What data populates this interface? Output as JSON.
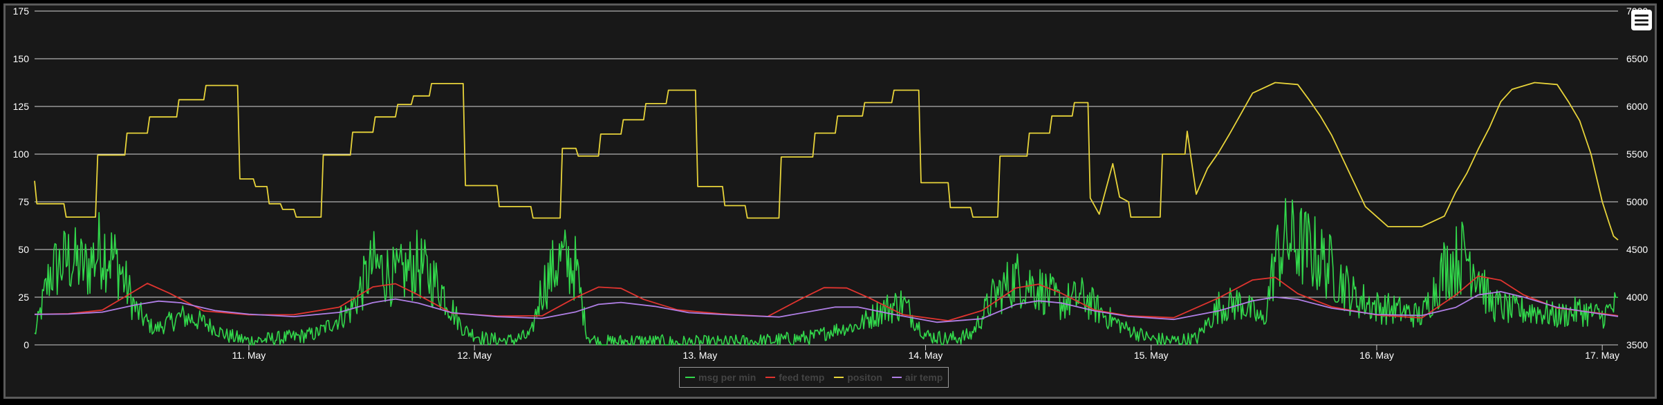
{
  "chart_data": {
    "type": "line",
    "title": "",
    "xlabel": "",
    "ylabel_left": "",
    "ylabel_right": "",
    "grid": true,
    "legend_position": "bottom-center",
    "x_ticks": [
      "11. May",
      "12. May",
      "13. May",
      "14. May",
      "15. May",
      "16. May",
      "17. May"
    ],
    "x_tick_days": [
      11,
      12,
      13,
      14,
      15,
      16,
      17
    ],
    "xlim": [
      10.05,
      17.07
    ],
    "y_left": {
      "ticks": [
        "0",
        "25",
        "50",
        "75",
        "100",
        "125",
        "150",
        "175"
      ],
      "range": [
        0,
        175
      ]
    },
    "y_right": {
      "ticks": [
        "3500",
        "4000",
        "4500",
        "5000",
        "5500",
        "6000",
        "6500",
        "7000"
      ],
      "range": [
        3500,
        7000
      ]
    },
    "series": [
      {
        "name": "msg per min",
        "color": "#32d74b",
        "axis": "left",
        "noisy": true,
        "points": [
          [
            10.05,
            5
          ],
          [
            10.12,
            38
          ],
          [
            10.2,
            45
          ],
          [
            10.28,
            40
          ],
          [
            10.35,
            52
          ],
          [
            10.42,
            42
          ],
          [
            10.5,
            18
          ],
          [
            10.58,
            8
          ],
          [
            10.7,
            15
          ],
          [
            10.8,
            12
          ],
          [
            10.9,
            5
          ],
          [
            11.0,
            2
          ],
          [
            11.1,
            3
          ],
          [
            11.2,
            4
          ],
          [
            11.3,
            6
          ],
          [
            11.45,
            18
          ],
          [
            11.55,
            42
          ],
          [
            11.65,
            35
          ],
          [
            11.75,
            42
          ],
          [
            11.85,
            30
          ],
          [
            11.95,
            8
          ],
          [
            12.05,
            3
          ],
          [
            12.15,
            2
          ],
          [
            12.25,
            5
          ],
          [
            12.3,
            30
          ],
          [
            12.38,
            45
          ],
          [
            12.45,
            40
          ],
          [
            12.5,
            5
          ],
          [
            12.55,
            1
          ],
          [
            12.7,
            2
          ],
          [
            12.9,
            1
          ],
          [
            13.1,
            1
          ],
          [
            13.3,
            2
          ],
          [
            13.5,
            4
          ],
          [
            13.6,
            8
          ],
          [
            13.7,
            10
          ],
          [
            13.8,
            18
          ],
          [
            13.9,
            22
          ],
          [
            14.0,
            5
          ],
          [
            14.1,
            3
          ],
          [
            14.2,
            5
          ],
          [
            14.3,
            25
          ],
          [
            14.4,
            35
          ],
          [
            14.5,
            30
          ],
          [
            14.6,
            22
          ],
          [
            14.7,
            25
          ],
          [
            14.8,
            15
          ],
          [
            14.9,
            8
          ],
          [
            15.0,
            3
          ],
          [
            15.1,
            2
          ],
          [
            15.2,
            3
          ],
          [
            15.3,
            20
          ],
          [
            15.4,
            22
          ],
          [
            15.5,
            12
          ],
          [
            15.55,
            45
          ],
          [
            15.6,
            55
          ],
          [
            15.7,
            50
          ],
          [
            15.8,
            40
          ],
          [
            15.9,
            25
          ],
          [
            16.0,
            20
          ],
          [
            16.1,
            18
          ],
          [
            16.2,
            15
          ],
          [
            16.3,
            40
          ],
          [
            16.4,
            48
          ],
          [
            16.45,
            40
          ],
          [
            16.5,
            22
          ],
          [
            16.6,
            18
          ],
          [
            16.7,
            18
          ],
          [
            16.8,
            15
          ],
          [
            16.9,
            18
          ],
          [
            17.0,
            15
          ],
          [
            17.05,
            20
          ]
        ]
      },
      {
        "name": "feed temp",
        "color": "#e0342f",
        "axis": "left",
        "noisy": false,
        "points": [
          [
            10.05,
            16
          ],
          [
            10.2,
            16.5
          ],
          [
            10.35,
            18
          ],
          [
            10.45,
            25
          ],
          [
            10.55,
            32
          ],
          [
            10.65,
            27
          ],
          [
            10.8,
            18
          ],
          [
            11.0,
            16
          ],
          [
            11.2,
            15.5
          ],
          [
            11.4,
            20
          ],
          [
            11.55,
            30
          ],
          [
            11.65,
            32
          ],
          [
            11.75,
            26
          ],
          [
            11.9,
            17
          ],
          [
            12.1,
            15
          ],
          [
            12.3,
            15
          ],
          [
            12.45,
            25
          ],
          [
            12.55,
            30
          ],
          [
            12.65,
            30
          ],
          [
            12.75,
            24
          ],
          [
            12.9,
            18
          ],
          [
            13.1,
            16
          ],
          [
            13.3,
            15
          ],
          [
            13.45,
            24
          ],
          [
            13.55,
            30
          ],
          [
            13.65,
            30
          ],
          [
            13.75,
            25
          ],
          [
            13.9,
            16
          ],
          [
            14.1,
            13
          ],
          [
            14.25,
            18
          ],
          [
            14.4,
            30
          ],
          [
            14.5,
            32
          ],
          [
            14.6,
            27
          ],
          [
            14.75,
            18
          ],
          [
            14.9,
            15
          ],
          [
            15.1,
            14
          ],
          [
            15.3,
            25
          ],
          [
            15.45,
            34
          ],
          [
            15.55,
            35
          ],
          [
            15.65,
            27
          ],
          [
            15.8,
            20
          ],
          [
            16.0,
            16
          ],
          [
            16.2,
            14
          ],
          [
            16.35,
            26
          ],
          [
            16.45,
            36
          ],
          [
            16.55,
            34
          ],
          [
            16.65,
            26
          ],
          [
            16.8,
            19
          ],
          [
            17.0,
            16
          ],
          [
            17.07,
            15
          ]
        ]
      },
      {
        "name": "positon",
        "color": "#e8d43a",
        "axis": "right",
        "noisy": false,
        "points": [
          [
            10.05,
            5220
          ],
          [
            10.06,
            4980
          ],
          [
            10.18,
            4980
          ],
          [
            10.19,
            4840
          ],
          [
            10.32,
            4840
          ],
          [
            10.33,
            5490
          ],
          [
            10.45,
            5490
          ],
          [
            10.46,
            5720
          ],
          [
            10.55,
            5720
          ],
          [
            10.56,
            5890
          ],
          [
            10.68,
            5890
          ],
          [
            10.69,
            6070
          ],
          [
            10.8,
            6070
          ],
          [
            10.81,
            6220
          ],
          [
            10.95,
            6220
          ],
          [
            10.96,
            5240
          ],
          [
            11.02,
            5240
          ],
          [
            11.03,
            5160
          ],
          [
            11.08,
            5160
          ],
          [
            11.09,
            4980
          ],
          [
            11.14,
            4980
          ],
          [
            11.15,
            4920
          ],
          [
            11.2,
            4920
          ],
          [
            11.21,
            4840
          ],
          [
            11.32,
            4840
          ],
          [
            11.33,
            5490
          ],
          [
            11.45,
            5490
          ],
          [
            11.46,
            5730
          ],
          [
            11.55,
            5730
          ],
          [
            11.56,
            5890
          ],
          [
            11.65,
            5890
          ],
          [
            11.66,
            6020
          ],
          [
            11.72,
            6020
          ],
          [
            11.73,
            6110
          ],
          [
            11.8,
            6110
          ],
          [
            11.81,
            6240
          ],
          [
            11.95,
            6240
          ],
          [
            11.96,
            5170
          ],
          [
            12.1,
            5170
          ],
          [
            12.11,
            4950
          ],
          [
            12.25,
            4950
          ],
          [
            12.26,
            4830
          ],
          [
            12.38,
            4830
          ],
          [
            12.39,
            5560
          ],
          [
            12.45,
            5560
          ],
          [
            12.46,
            5480
          ],
          [
            12.55,
            5480
          ],
          [
            12.56,
            5710
          ],
          [
            12.65,
            5710
          ],
          [
            12.66,
            5860
          ],
          [
            12.75,
            5860
          ],
          [
            12.76,
            6030
          ],
          [
            12.85,
            6030
          ],
          [
            12.86,
            6170
          ],
          [
            12.98,
            6170
          ],
          [
            12.99,
            5160
          ],
          [
            13.1,
            5160
          ],
          [
            13.11,
            4960
          ],
          [
            13.2,
            4960
          ],
          [
            13.21,
            4830
          ],
          [
            13.35,
            4830
          ],
          [
            13.36,
            5470
          ],
          [
            13.5,
            5470
          ],
          [
            13.51,
            5720
          ],
          [
            13.6,
            5720
          ],
          [
            13.61,
            5900
          ],
          [
            13.72,
            5900
          ],
          [
            13.73,
            6040
          ],
          [
            13.85,
            6040
          ],
          [
            13.86,
            6170
          ],
          [
            13.97,
            6170
          ],
          [
            13.98,
            5200
          ],
          [
            14.1,
            5200
          ],
          [
            14.11,
            4940
          ],
          [
            14.2,
            4940
          ],
          [
            14.21,
            4840
          ],
          [
            14.32,
            4840
          ],
          [
            14.33,
            5480
          ],
          [
            14.45,
            5480
          ],
          [
            14.46,
            5720
          ],
          [
            14.55,
            5720
          ],
          [
            14.56,
            5900
          ],
          [
            14.65,
            5900
          ],
          [
            14.66,
            6040
          ],
          [
            14.72,
            6040
          ],
          [
            14.73,
            5040
          ],
          [
            14.77,
            4870
          ],
          [
            14.83,
            5400
          ],
          [
            14.86,
            5050
          ],
          [
            14.9,
            5000
          ],
          [
            14.91,
            4840
          ],
          [
            15.04,
            4840
          ],
          [
            15.05,
            5500
          ],
          [
            15.15,
            5500
          ],
          [
            15.16,
            5740
          ],
          [
            15.2,
            5080
          ],
          [
            15.25,
            5350
          ],
          [
            15.3,
            5520
          ],
          [
            15.35,
            5720
          ],
          [
            15.4,
            5930
          ],
          [
            15.45,
            6140
          ],
          [
            15.55,
            6250
          ],
          [
            15.65,
            6230
          ],
          [
            15.7,
            6070
          ],
          [
            15.75,
            5900
          ],
          [
            15.8,
            5700
          ],
          [
            15.85,
            5450
          ],
          [
            15.9,
            5200
          ],
          [
            15.95,
            4950
          ],
          [
            16.05,
            4740
          ],
          [
            16.2,
            4740
          ],
          [
            16.3,
            4850
          ],
          [
            16.35,
            5100
          ],
          [
            16.4,
            5300
          ],
          [
            16.45,
            5550
          ],
          [
            16.5,
            5780
          ],
          [
            16.55,
            6050
          ],
          [
            16.6,
            6180
          ],
          [
            16.7,
            6250
          ],
          [
            16.8,
            6230
          ],
          [
            16.85,
            6050
          ],
          [
            16.9,
            5850
          ],
          [
            16.95,
            5500
          ],
          [
            17.0,
            5000
          ],
          [
            17.03,
            4780
          ],
          [
            17.05,
            4640
          ],
          [
            17.07,
            4600
          ]
        ]
      },
      {
        "name": "air temp",
        "color": "#b07fe6",
        "axis": "left",
        "noisy": false,
        "points": [
          [
            10.05,
            16
          ],
          [
            10.2,
            16
          ],
          [
            10.35,
            17
          ],
          [
            10.5,
            21
          ],
          [
            10.6,
            23
          ],
          [
            10.7,
            22
          ],
          [
            10.85,
            18
          ],
          [
            11.0,
            16
          ],
          [
            11.2,
            15
          ],
          [
            11.4,
            17
          ],
          [
            11.55,
            22
          ],
          [
            11.65,
            24
          ],
          [
            11.75,
            22
          ],
          [
            11.9,
            17
          ],
          [
            12.1,
            14.5
          ],
          [
            12.3,
            14
          ],
          [
            12.45,
            17
          ],
          [
            12.55,
            21
          ],
          [
            12.65,
            22
          ],
          [
            12.8,
            20
          ],
          [
            12.95,
            17
          ],
          [
            13.15,
            16
          ],
          [
            13.35,
            15
          ],
          [
            13.5,
            18
          ],
          [
            13.6,
            20
          ],
          [
            13.7,
            20
          ],
          [
            13.85,
            16
          ],
          [
            14.05,
            12
          ],
          [
            14.25,
            14
          ],
          [
            14.4,
            21
          ],
          [
            14.5,
            23
          ],
          [
            14.6,
            22
          ],
          [
            14.75,
            18
          ],
          [
            14.9,
            15
          ],
          [
            15.1,
            13
          ],
          [
            15.3,
            18
          ],
          [
            15.45,
            23
          ],
          [
            15.55,
            25
          ],
          [
            15.65,
            24
          ],
          [
            15.8,
            19
          ],
          [
            16.0,
            16
          ],
          [
            16.2,
            15
          ],
          [
            16.35,
            20
          ],
          [
            16.45,
            26
          ],
          [
            16.55,
            28
          ],
          [
            16.65,
            25
          ],
          [
            16.8,
            20
          ],
          [
            17.0,
            16
          ],
          [
            17.07,
            15
          ]
        ]
      }
    ]
  },
  "ui": {
    "menu_button_icon": "hamburger-menu-icon"
  }
}
